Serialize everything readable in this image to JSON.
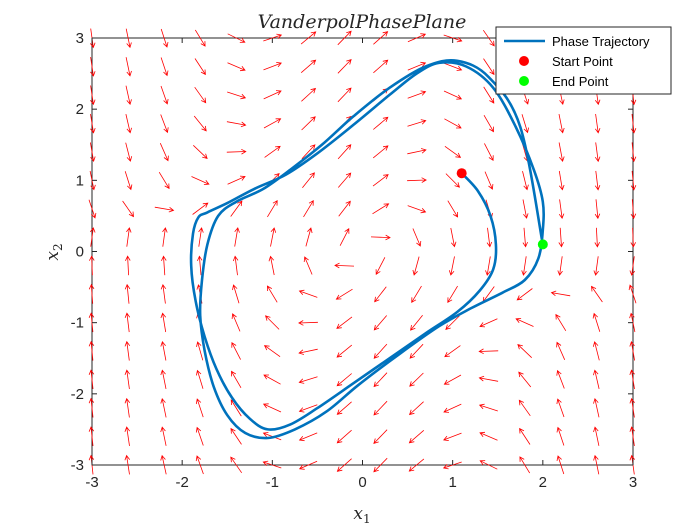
{
  "chart_data": {
    "type": "line",
    "title": "VanderpolPhasePlane",
    "xlabel": "x",
    "xlabel_sub": "1",
    "ylabel": "x",
    "ylabel_sub": "2",
    "xlim": [
      -3,
      3
    ],
    "ylim": [
      -3,
      3
    ],
    "x_ticks": [
      -3,
      -2,
      -1,
      0,
      1,
      2,
      3
    ],
    "y_ticks": [
      -3,
      -2,
      -1,
      0,
      1,
      2,
      3
    ],
    "grid": false,
    "legend_position": "top-right",
    "mu": 1,
    "series": [
      {
        "name": "Phase Trajectory",
        "color": "#0072BD",
        "x": [
          1.1,
          1.28,
          1.42,
          1.48,
          1.45,
          1.3,
          1.05,
          0.7,
          0.3,
          -0.1,
          -0.5,
          -0.8,
          -1.05,
          -1.25,
          -1.45,
          -1.62,
          -1.75,
          -1.85,
          -1.9,
          -1.88,
          -1.82,
          -1.72,
          -1.5,
          -1.2,
          -0.85,
          -0.5,
          -0.1,
          0.3,
          0.6,
          0.85,
          1.15,
          1.45,
          1.7,
          1.9,
          2.0,
          2.0,
          1.95,
          1.8,
          1.55,
          1.2,
          0.85,
          0.4,
          -0.05,
          -0.4,
          -0.75,
          -1.05,
          -1.3,
          -1.5,
          -1.65,
          -1.75,
          -1.8,
          -1.78,
          -1.72,
          -1.6,
          -1.4,
          -1.1,
          -0.8,
          -0.45,
          -0.1,
          0.3,
          0.7,
          1.05,
          1.4,
          1.75,
          2.0
        ],
        "y": [
          1.1,
          0.85,
          0.5,
          0.1,
          -0.25,
          -0.55,
          -0.85,
          -1.15,
          -1.5,
          -1.85,
          -2.2,
          -2.43,
          -2.5,
          -2.35,
          -2.05,
          -1.65,
          -1.2,
          -0.7,
          -0.2,
          0.25,
          0.48,
          0.55,
          0.68,
          0.88,
          1.08,
          1.38,
          1.78,
          2.2,
          2.5,
          2.65,
          2.6,
          2.3,
          1.75,
          1.15,
          0.7,
          0.3,
          -0.1,
          -0.4,
          -0.58,
          -0.8,
          -1.05,
          -1.45,
          -1.88,
          -2.25,
          -2.5,
          -2.62,
          -2.55,
          -2.3,
          -1.9,
          -1.4,
          -0.9,
          -0.4,
          0.1,
          0.5,
          0.7,
          0.88,
          1.15,
          1.5,
          1.9,
          2.3,
          2.6,
          2.68,
          2.45,
          1.75,
          0.1
        ]
      },
      {
        "name": "Start Point",
        "color": "#FF0000",
        "marker": "circle",
        "x": [
          1.1
        ],
        "y": [
          1.1
        ]
      },
      {
        "name": "End Point",
        "color": "#00FF00",
        "marker": "circle",
        "x": [
          2.0
        ],
        "y": [
          0.1
        ]
      }
    ],
    "vector_field": {
      "color": "#FF0000",
      "x_range": [
        -3,
        3
      ],
      "y_range": [
        -3,
        3
      ],
      "step": 0.4
    }
  }
}
